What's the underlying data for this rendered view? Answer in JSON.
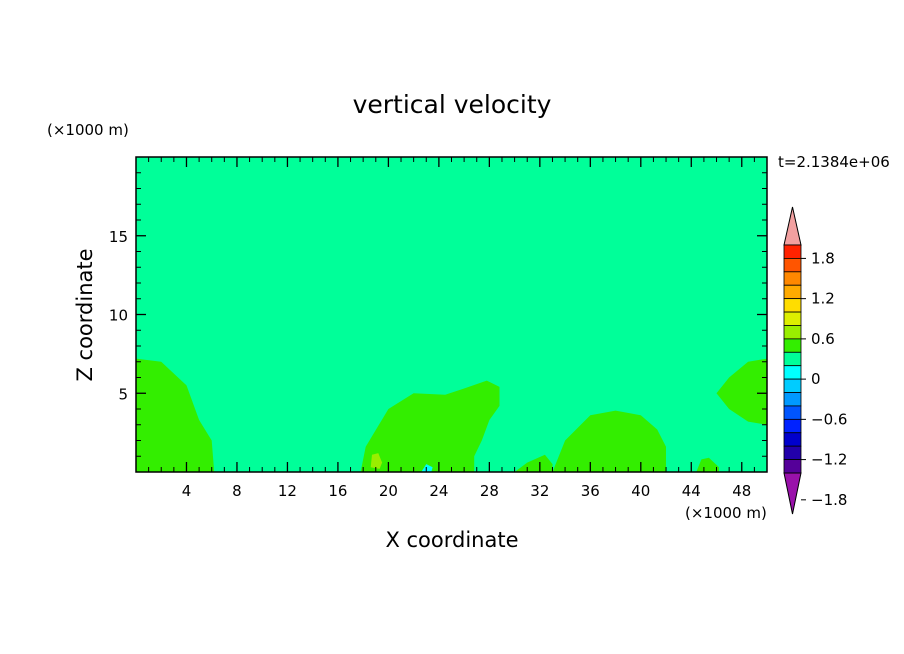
{
  "chart_data": {
    "type": "heatmap",
    "title": "vertical velocity",
    "xlabel": "X coordinate",
    "ylabel": "Z coordinate",
    "x_unit": "(×1000 m)",
    "y_unit": "(×1000 m)",
    "time_label": "t=2.1384e+06",
    "xlim": [
      0,
      50
    ],
    "ylim": [
      0,
      20
    ],
    "x_ticks": [
      4,
      8,
      12,
      16,
      20,
      24,
      28,
      32,
      36,
      40,
      44,
      48
    ],
    "y_ticks": [
      5,
      10,
      15
    ],
    "background_level": {
      "range": [
        -0.2,
        0.0
      ],
      "color": "#00ff99"
    },
    "regions": [
      {
        "name": "left-lower",
        "level": [
          0.0,
          0.2
        ],
        "color": "#33ee00",
        "points": [
          [
            0,
            0
          ],
          [
            0,
            7.2
          ],
          [
            2,
            7
          ],
          [
            4,
            5.5
          ],
          [
            5,
            3.3
          ],
          [
            6,
            2
          ],
          [
            6.2,
            0
          ]
        ]
      },
      {
        "name": "central-lower",
        "level": [
          0.0,
          0.2
        ],
        "color": "#33ee00",
        "points": [
          [
            17.8,
            0
          ],
          [
            18.2,
            1.6
          ],
          [
            20,
            4
          ],
          [
            22,
            5
          ],
          [
            24.5,
            4.9
          ],
          [
            26,
            5.3
          ],
          [
            27.8,
            5.8
          ],
          [
            28.8,
            5.4
          ],
          [
            28.8,
            4.2
          ],
          [
            28,
            3.3
          ],
          [
            27.4,
            2
          ],
          [
            26.8,
            1
          ],
          [
            26.8,
            0
          ]
        ]
      },
      {
        "name": "right-centre-lower",
        "level": [
          0.0,
          0.2
        ],
        "color": "#33ee00",
        "points": [
          [
            33,
            0
          ],
          [
            34,
            2
          ],
          [
            36,
            3.6
          ],
          [
            38,
            3.9
          ],
          [
            40,
            3.6
          ],
          [
            41.3,
            2.7
          ],
          [
            42,
            1.6
          ],
          [
            42,
            0
          ]
        ]
      },
      {
        "name": "right-edge",
        "level": [
          0.0,
          0.2
        ],
        "color": "#33ee00",
        "points": [
          [
            50,
            7.2
          ],
          [
            48.5,
            7
          ],
          [
            47,
            6
          ],
          [
            46,
            5
          ],
          [
            47,
            4
          ],
          [
            48.5,
            3.2
          ],
          [
            50,
            3
          ]
        ]
      },
      {
        "name": "small-patch-31",
        "level": [
          0.0,
          0.2
        ],
        "color": "#33ee00",
        "points": [
          [
            30,
            0
          ],
          [
            31,
            0.6
          ],
          [
            32.4,
            1.1
          ],
          [
            33,
            0.5
          ],
          [
            33,
            0
          ]
        ]
      },
      {
        "name": "small-patch-45",
        "level": [
          0.0,
          0.2
        ],
        "color": "#33ee00",
        "points": [
          [
            44.4,
            0
          ],
          [
            44.8,
            0.8
          ],
          [
            45.4,
            0.9
          ],
          [
            46.2,
            0.3
          ],
          [
            46.2,
            0
          ]
        ]
      },
      {
        "name": "small-patch-19",
        "level": [
          0.2,
          0.4
        ],
        "color": "#99ee00",
        "points": [
          [
            18.6,
            0.3
          ],
          [
            18.7,
            1.1
          ],
          [
            19.2,
            1.2
          ],
          [
            19.5,
            0.6
          ],
          [
            19.3,
            0.2
          ]
        ]
      },
      {
        "name": "small-patch-23",
        "level": [
          -0.4,
          -0.2
        ],
        "color": "#00ffff",
        "points": [
          [
            22.6,
            0
          ],
          [
            23,
            0.5
          ],
          [
            23.5,
            0.3
          ],
          [
            23.4,
            0
          ]
        ]
      }
    ],
    "colorbar": {
      "tick_labels": [
        "1.8",
        "1.2",
        "0.6",
        "0",
        "−0.6",
        "−1.2",
        "−1.8"
      ],
      "levels_top_to_bottom": [
        "#f2a0a0",
        "#ff2200",
        "#ff5500",
        "#ff8800",
        "#ffaa00",
        "#ffdd00",
        "#ddee00",
        "#99ee00",
        "#33ee00",
        "#00ff99",
        "#00ffff",
        "#00ccff",
        "#0099ff",
        "#0055ff",
        "#0022ff",
        "#0000cc",
        "#2200aa",
        "#550099",
        "#9911aa"
      ]
    }
  }
}
